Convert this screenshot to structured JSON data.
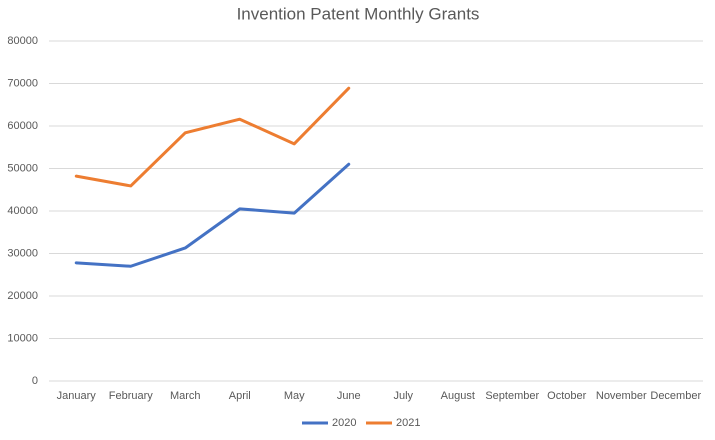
{
  "chart_data": {
    "type": "line",
    "title": "Invention Patent Monthly Grants",
    "categories": [
      "January",
      "February",
      "March",
      "April",
      "May",
      "June",
      "July",
      "August",
      "September",
      "October",
      "November",
      "December"
    ],
    "series": [
      {
        "name": "2020",
        "color": "#4472c4",
        "values": [
          27800,
          27000,
          31300,
          40500,
          39500,
          51000,
          null,
          null,
          null,
          null,
          null,
          null
        ]
      },
      {
        "name": "2021",
        "color": "#ed7d31",
        "values": [
          48200,
          45900,
          58400,
          61600,
          55800,
          68900,
          null,
          null,
          null,
          null,
          null,
          null
        ]
      }
    ],
    "ylim": [
      0,
      80000
    ],
    "yticks": [
      0,
      10000,
      20000,
      30000,
      40000,
      50000,
      60000,
      70000,
      80000
    ],
    "grid": true,
    "legend": "bottom"
  }
}
